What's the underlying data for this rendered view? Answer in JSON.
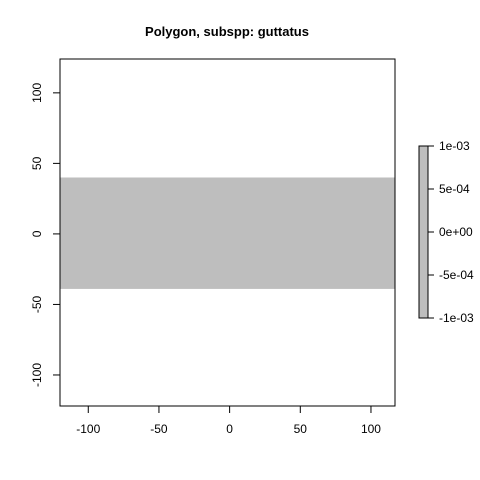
{
  "chart_data": {
    "type": "heatmap",
    "title": "Polygon, subspp: guttatus",
    "xlabel": "",
    "ylabel": "",
    "xlim": [
      -120,
      117
    ],
    "ylim": [
      -122,
      124
    ],
    "x_ticks": [
      -100,
      -50,
      0,
      50,
      100
    ],
    "x_tick_labels": [
      "-100",
      "-50",
      "0",
      "50",
      "100"
    ],
    "y_ticks": [
      -100,
      -50,
      0,
      50,
      100
    ],
    "y_tick_labels": [
      "-100",
      "-50",
      "0",
      "50",
      "100"
    ],
    "band": {
      "x_range": [
        -120,
        117
      ],
      "y_range": [
        -39,
        40
      ],
      "value": 0,
      "color": "#bebebe"
    },
    "legend": {
      "position": "right",
      "range": [
        -0.001,
        0.001
      ],
      "ticks": [
        0.001,
        0.0005,
        0,
        -0.0005,
        -0.001
      ],
      "tick_labels": [
        "1e-03",
        "5e-04",
        "0e+00",
        "-5e-04",
        "-1e-03"
      ],
      "color": "#bebebe"
    },
    "grid": false
  }
}
